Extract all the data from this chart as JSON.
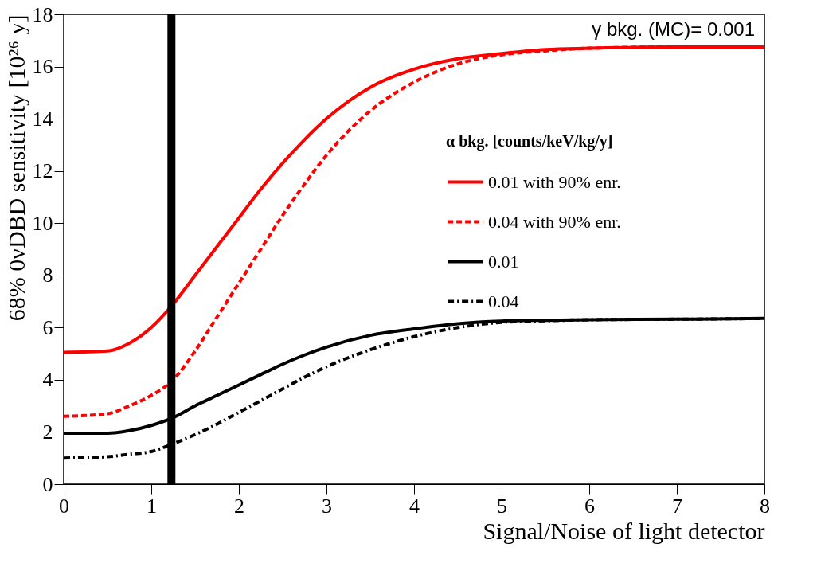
{
  "chart_data": {
    "type": "line",
    "xlabel": "Signal/Noise of light detector",
    "ylabel": "68%  0νDBD sensitivity  [10²⁶ y]",
    "legend_title": "α bkg. [counts/keV/kg/y]",
    "legend": "right",
    "annotations": [
      "γ bkg. (MC)= 0.001"
    ],
    "x": [
      0,
      0.5,
      0.75,
      1,
      1.25,
      1.5,
      1.75,
      2,
      2.25,
      2.5,
      2.75,
      3,
      3.5,
      4,
      4.5,
      5,
      5.5,
      6,
      7,
      8
    ],
    "series": [
      {
        "name": "0.01 with 90% enr.",
        "color": "#ff0000",
        "line_style": "solid",
        "values": [
          5.05,
          5.1,
          5.4,
          6.0,
          6.9,
          8.0,
          9.1,
          10.2,
          11.3,
          12.3,
          13.2,
          14.0,
          15.2,
          15.9,
          16.3,
          16.5,
          16.65,
          16.7,
          16.75,
          16.75
        ]
      },
      {
        "name": "0.04 with 90% enr.",
        "color": "#ff0000",
        "line_style": "dashed",
        "values": [
          2.6,
          2.7,
          3.0,
          3.4,
          4.0,
          5.1,
          6.4,
          7.7,
          9.0,
          10.3,
          11.5,
          12.6,
          14.3,
          15.4,
          16.1,
          16.45,
          16.6,
          16.7,
          16.75,
          16.75
        ]
      },
      {
        "name": "0.01",
        "color": "#000000",
        "line_style": "solid",
        "values": [
          1.95,
          1.95,
          2.05,
          2.25,
          2.55,
          3.0,
          3.4,
          3.8,
          4.2,
          4.6,
          4.95,
          5.25,
          5.7,
          5.95,
          6.15,
          6.25,
          6.28,
          6.3,
          6.32,
          6.35
        ]
      },
      {
        "name": "0.04",
        "color": "#000000",
        "line_style": "dotted",
        "values": [
          1.0,
          1.05,
          1.15,
          1.25,
          1.55,
          1.9,
          2.3,
          2.75,
          3.2,
          3.65,
          4.1,
          4.5,
          5.15,
          5.65,
          6.0,
          6.2,
          6.26,
          6.3,
          6.32,
          6.35
        ]
      }
    ],
    "ref_lines": [
      {
        "axis": "x",
        "value": 1.23,
        "label": null,
        "color": "#000000"
      }
    ],
    "xlim": [
      0,
      8
    ],
    "xticks": [
      0,
      1,
      2,
      3,
      4,
      5,
      6,
      7,
      8
    ],
    "ylim": [
      0,
      18
    ],
    "yticks": [
      0,
      2,
      4,
      6,
      8,
      10,
      12,
      14,
      16,
      18
    ],
    "grid": false,
    "marker": "none"
  }
}
